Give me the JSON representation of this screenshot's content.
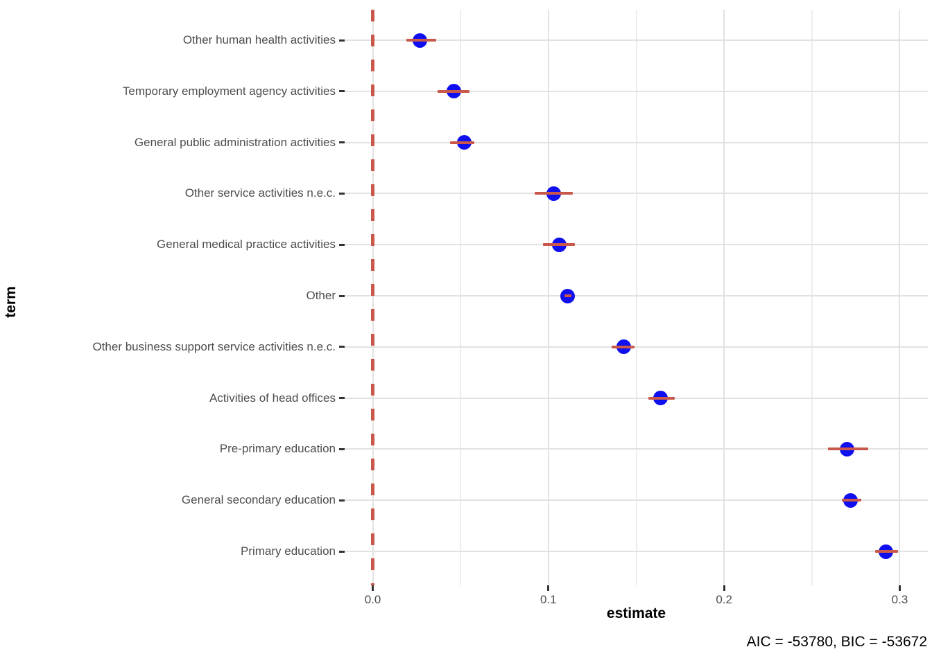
{
  "chart_data": {
    "type": "scatter",
    "subtype": "dot-whisker coefficient plot",
    "xlabel": "estimate",
    "ylabel": "term",
    "caption": "AIC = -53780, BIC = -53672",
    "grid": true,
    "legend_position": "none",
    "categories": [
      "Other human health activities",
      "Temporary employment agency activities",
      "General public administration activities",
      "Other service activities n.e.c.",
      "General medical practice activities",
      "Other",
      "Other business support service activities n.e.c.",
      "Activities of head offices",
      "Pre-primary education",
      "General secondary education",
      "Primary education"
    ],
    "series": [
      {
        "name": "estimate",
        "values": [
          0.027,
          0.046,
          0.052,
          0.103,
          0.106,
          0.111,
          0.143,
          0.164,
          0.27,
          0.272,
          0.292
        ]
      },
      {
        "name": "conf_low",
        "values": [
          0.019,
          0.037,
          0.044,
          0.092,
          0.097,
          0.109,
          0.136,
          0.157,
          0.259,
          0.267,
          0.286
        ]
      },
      {
        "name": "conf_high",
        "values": [
          0.036,
          0.055,
          0.058,
          0.114,
          0.115,
          0.113,
          0.149,
          0.172,
          0.282,
          0.278,
          0.299
        ]
      }
    ],
    "xlim": [
      -0.016,
      0.316
    ],
    "x_ticks": [
      0.0,
      0.1,
      0.2,
      0.3
    ],
    "x_tick_labels": [
      "0.0",
      "0.1",
      "0.2",
      "0.3"
    ],
    "x_minor_ticks": [
      0.05,
      0.15,
      0.25
    ],
    "reference_line": {
      "x": 0.0,
      "style": "dashed",
      "orientation": "vertical"
    },
    "colors": {
      "point": "#0f0fef",
      "errorbar": "#c9584a",
      "reference_line": "#c9584a",
      "grid_major": "#e2e2e2",
      "grid_minor": "#ededed",
      "axis_text": "#4d4d4d",
      "axis_title": "#000000",
      "tick_mark": "#333333",
      "background": "#ffffff"
    }
  }
}
